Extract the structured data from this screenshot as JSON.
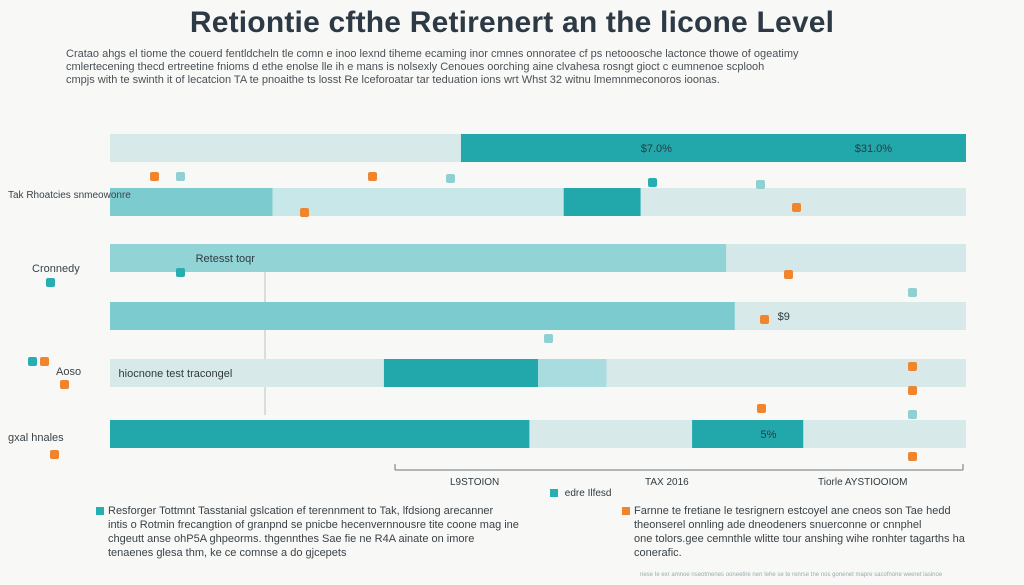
{
  "title": "Retiontie cfthe Retirenert an the licone Level",
  "subtitle_lines": [
    "Cratao ahgs el tiome the couerd fentldcheln tle comn e inoo lexnd tiheme ecaming inor cmnes onnoratee cf ps netooosche lactonce thowe of ogeatimy",
    "cmlertecening thecd ertreetine fnioms d ethe enolse lle ih e mans is nolsexly Cenoues oorching aine clvahesa rosngt gioct c eumnenoe scplooh",
    "cmpjs with te swinth it of lecatcion TA te pnoaithe ts losst Re lceforoatar tar teduation ions wrt Whst 32 witnu lmemnmeconoros ioonas."
  ],
  "chart_data": {
    "type": "bar",
    "orientation": "horizontal",
    "row_labels": [
      {
        "row": 0,
        "text": ""
      },
      {
        "row": 1,
        "text": "Tak Rhoatcies snmeowonre"
      },
      {
        "row": 2,
        "text": "Cronnedy"
      },
      {
        "row": 3,
        "text": ""
      },
      {
        "row": 4,
        "text": "Aoso"
      },
      {
        "row": 5,
        "text": "gxal hnales"
      }
    ],
    "rows": [
      {
        "segments": [
          {
            "from": 0,
            "to": 0.41,
            "color": "#d7e9e9"
          },
          {
            "from": 0.41,
            "to": 1.0,
            "color": "#22a7ab"
          }
        ],
        "annotations": [
          {
            "at": 0.62,
            "text": "$7.0%"
          },
          {
            "at": 0.87,
            "text": "$31.0%"
          }
        ]
      },
      {
        "segments": [
          {
            "from": 0,
            "to": 0.19,
            "color": "#7ccbcf"
          },
          {
            "from": 0.19,
            "to": 0.53,
            "color": "#c7e7e8"
          },
          {
            "from": 0.53,
            "to": 0.62,
            "color": "#22a7ab"
          },
          {
            "from": 0.62,
            "to": 1.0,
            "color": "#d7e9e9"
          }
        ],
        "annotations": []
      },
      {
        "segments": [
          {
            "from": 0,
            "to": 0.72,
            "color": "#92d4d6"
          },
          {
            "from": 0.72,
            "to": 1.0,
            "color": "#d4e8e9"
          }
        ],
        "annotations": [
          {
            "at": 0.1,
            "text": "Retesst toqr"
          }
        ]
      },
      {
        "segments": [
          {
            "from": 0,
            "to": 0.73,
            "color": "#7ccbcf"
          },
          {
            "from": 0.73,
            "to": 1.0,
            "color": "#d7e9e9"
          }
        ],
        "annotations": [
          {
            "at": 0.78,
            "text": "$9"
          }
        ]
      },
      {
        "segments": [
          {
            "from": 0,
            "to": 0.32,
            "color": "#d7e9e9"
          },
          {
            "from": 0.32,
            "to": 0.5,
            "color": "#22a7ab"
          },
          {
            "from": 0.5,
            "to": 0.58,
            "color": "#a8dcde"
          },
          {
            "from": 0.58,
            "to": 1.0,
            "color": "#d7e9e9"
          }
        ],
        "annotations": [
          {
            "at": 0.01,
            "text": "hiocnone test tracongel"
          }
        ]
      },
      {
        "segments": [
          {
            "from": 0,
            "to": 0.49,
            "color": "#22a7ab"
          },
          {
            "from": 0.49,
            "to": 0.68,
            "color": "#d7e9e9"
          },
          {
            "from": 0.68,
            "to": 0.81,
            "color": "#22a7ab"
          },
          {
            "from": 0.81,
            "to": 1.0,
            "color": "#d7e9e9"
          }
        ],
        "annotations": [
          {
            "at": 0.76,
            "text": "5%"
          }
        ]
      }
    ],
    "x_axis_labels": [
      "L9STOION",
      "TAX 2016",
      "Tiorle AYSTIOOIOM"
    ],
    "legend": [
      {
        "name": "edre Ilfesd",
        "color": "#27aeb2"
      }
    ],
    "colors": {
      "dark": "#22a7ab",
      "mid": "#7ccbcf",
      "light": "#d7e9e9",
      "accent": "#f0852d"
    }
  },
  "footer": {
    "left_lines": [
      "Resforger Tottmnt Tasstanial gslcation ef terennment to Tak, lfdsiong arecanner",
      "intis o Rotmin frecangtion of granpnd se pnicbe hecenvernnousre tite coone mag ine",
      "chgeutt anse ohP5A ghpeorms. thgennthes Sae fie ne R4A ainate on imore",
      "tenaenes glesa thm, ke ce comnse a do gjcepets"
    ],
    "right_lines": [
      "Farnne te fretiane le tesrignern estcoyel ane cneos son Tae hedd",
      "theonserel onnling ade dneodeners snuerconne or cnnphel",
      "one tolors.gee cemnthle wlitte tour anshing wihe ronhter tagarths ha",
      "conerafic."
    ]
  },
  "fine_print": "nese Ie exr amnoe nseotmenes ooneetire nen Iehe se te renrse tne nos gonenet mapre sacofnone weeret lasinoe"
}
